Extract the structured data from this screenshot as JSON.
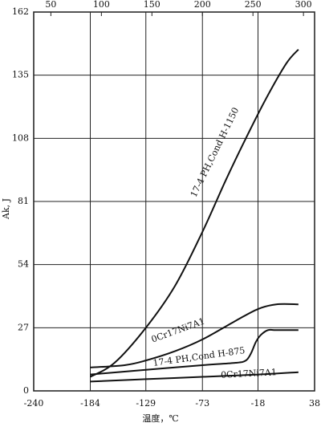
{
  "chart_data": {
    "type": "line",
    "x_label": "温度，℃",
    "y_label": "Ak, J",
    "xlim": [
      -240,
      38
    ],
    "xticks": [
      -240,
      -184,
      -129,
      -73,
      -18,
      38
    ],
    "x2lim": [
      33,
      311
    ],
    "x2ticks": [
      50,
      100,
      150,
      200,
      250,
      300
    ],
    "ylim": [
      0,
      162
    ],
    "yticks": [
      0,
      27,
      54,
      81,
      108,
      135,
      162
    ],
    "grid": true,
    "series": [
      {
        "name": "17-4 PH,Cond H-1150",
        "color": "#111111",
        "x": [
          -184,
          -160,
          -129,
          -100,
          -73,
          -50,
          -30,
          -10,
          10,
          22
        ],
        "values": [
          6,
          12,
          27,
          45,
          68,
          90,
          108,
          125,
          140,
          146
        ]
      },
      {
        "name": "0Cr17Ni7A1",
        "color": "#111111",
        "x": [
          -184,
          -150,
          -129,
          -100,
          -73,
          -40,
          -18,
          0,
          22
        ],
        "values": [
          10,
          11,
          13,
          17,
          22,
          30,
          35,
          37,
          37
        ]
      },
      {
        "name": "17-4 PH,Cond H-875",
        "color": "#111111",
        "x": [
          -184,
          -129,
          -73,
          -40,
          -30,
          -25,
          -20,
          -15,
          -8,
          0,
          22
        ],
        "values": [
          7,
          9,
          11,
          12,
          13,
          16,
          21,
          24,
          26,
          26,
          26
        ]
      },
      {
        "name": "0Cr17Ni7A1",
        "color": "#111111",
        "x": [
          -184,
          -129,
          -73,
          -18,
          22
        ],
        "values": [
          4,
          5,
          6,
          7,
          8
        ]
      }
    ]
  }
}
